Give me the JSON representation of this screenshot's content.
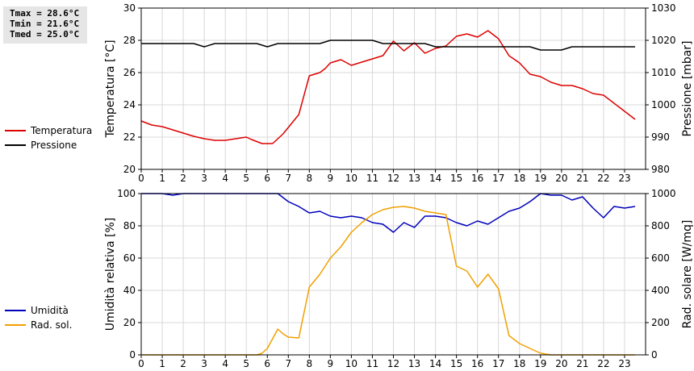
{
  "stats": {
    "tmax": "Tmax = 28.6°C",
    "tmin": "Tmin = 21.6°C",
    "tmed": "Tmed = 25.0°C"
  },
  "legend_top": [
    {
      "label": "Temperatura",
      "color": "#dd0000"
    },
    {
      "label": "Pressione",
      "color": "#000000"
    }
  ],
  "legend_bottom": [
    {
      "label": "Umidità",
      "color": "#0000bb"
    },
    {
      "label": "Rad. sol.",
      "color": "#f0a000"
    }
  ],
  "chart_data": [
    {
      "type": "line",
      "ylabel": "Temperatura [°C]",
      "y2label": "Pressione [mbar]",
      "xlim": [
        0,
        24
      ],
      "xticks": [
        "0",
        "1",
        "2",
        "3",
        "4",
        "5",
        "6",
        "7",
        "8",
        "9",
        "10",
        "11",
        "12",
        "13",
        "14",
        "15",
        "16",
        "17",
        "18",
        "19",
        "20",
        "21",
        "22",
        "23"
      ],
      "ylim": [
        20,
        30
      ],
      "yticks": [
        "20",
        "22",
        "24",
        "26",
        "28",
        "30"
      ],
      "y2lim": [
        980,
        1030
      ],
      "y2ticks": [
        "980",
        "990",
        "1000",
        "1010",
        "1020",
        "1030"
      ],
      "grid": true,
      "series": [
        {
          "name": "Temperatura",
          "axis": "left",
          "color": "#dd0000",
          "x": [
            0,
            0.5,
            1,
            1.5,
            2,
            2.5,
            3,
            3.5,
            4,
            4.5,
            5,
            5.25,
            5.75,
            6.25,
            6.75,
            7.25,
            7.5,
            8,
            8.25,
            8.5,
            8.75,
            9,
            9.25,
            9.5,
            10,
            10.5,
            11,
            11.5,
            12,
            12.5,
            13,
            13.5,
            14,
            14.5,
            15,
            15.5,
            16,
            16.5,
            17,
            17.5,
            18,
            18.5,
            19,
            19.5,
            20,
            20.5,
            21,
            21.5,
            22,
            22.5,
            23,
            23.5
          ],
          "values": [
            23.0,
            22.75,
            22.65,
            22.45,
            22.25,
            22.05,
            21.9,
            21.8,
            21.8,
            21.9,
            22.0,
            21.85,
            21.6,
            21.6,
            22.2,
            23.0,
            23.4,
            25.8,
            25.9,
            26.0,
            26.25,
            26.6,
            26.7,
            26.8,
            26.45,
            26.65,
            26.85,
            27.05,
            27.95,
            27.35,
            27.85,
            27.2,
            27.5,
            27.65,
            28.25,
            28.4,
            28.2,
            28.6,
            28.1,
            27.05,
            26.6,
            25.9,
            25.75,
            25.4,
            25.2,
            25.2,
            25.0,
            24.7,
            24.6,
            24.1,
            23.6,
            23.1
          ]
        },
        {
          "name": "Pressione",
          "axis": "right",
          "color": "#000000",
          "x": [
            0,
            0.5,
            1,
            1.5,
            2,
            2.5,
            3,
            3.5,
            4,
            4.5,
            5,
            5.5,
            6,
            6.5,
            7,
            7.5,
            8,
            8.5,
            9,
            9.5,
            10,
            10.5,
            11,
            11.5,
            12,
            12.5,
            13,
            13.5,
            14,
            14.5,
            15,
            15.5,
            16,
            16.5,
            17,
            17.5,
            18,
            18.5,
            19,
            19.5,
            20,
            20.5,
            21,
            21.5,
            22,
            22.5,
            23,
            23.5
          ],
          "values": [
            1019,
            1019,
            1019,
            1019,
            1019,
            1019,
            1018,
            1019,
            1019,
            1019,
            1019,
            1019,
            1018,
            1019,
            1019,
            1019,
            1019,
            1019,
            1020,
            1020,
            1020,
            1020,
            1020,
            1019,
            1019,
            1019,
            1019,
            1019,
            1018,
            1018,
            1018,
            1018,
            1018,
            1018,
            1018,
            1018,
            1018,
            1018,
            1017,
            1017,
            1017,
            1018,
            1018,
            1018,
            1018,
            1018,
            1018,
            1018
          ]
        }
      ]
    },
    {
      "type": "line",
      "ylabel": "Umidità relativa [%]",
      "y2label": "Rad. solare [W/mq]",
      "xlim": [
        0,
        24
      ],
      "xticks": [
        "0",
        "1",
        "2",
        "3",
        "4",
        "5",
        "6",
        "7",
        "8",
        "9",
        "10",
        "11",
        "12",
        "13",
        "14",
        "15",
        "16",
        "17",
        "18",
        "19",
        "20",
        "21",
        "22",
        "23"
      ],
      "ylim": [
        0,
        100
      ],
      "yticks": [
        "0",
        "20",
        "40",
        "60",
        "80",
        "100"
      ],
      "y2lim": [
        0,
        1000
      ],
      "y2ticks": [
        "0",
        "200",
        "400",
        "600",
        "800",
        "1000"
      ],
      "grid": true,
      "series": [
        {
          "name": "Umidità",
          "axis": "left",
          "color": "#0000bb",
          "x": [
            0,
            1,
            1.5,
            2,
            3,
            4,
            5,
            6,
            6.5,
            7,
            7.5,
            8,
            8.5,
            9,
            9.5,
            10,
            10.5,
            11,
            11.5,
            12,
            12.5,
            13,
            13.5,
            14,
            14.5,
            15,
            15.5,
            16,
            16.5,
            17,
            17.5,
            18,
            18.5,
            19,
            19.5,
            20,
            20.5,
            21,
            21.5,
            22,
            22.5,
            23,
            23.5
          ],
          "values": [
            100,
            100,
            99,
            100,
            100,
            100,
            100,
            100,
            100,
            95,
            92,
            88,
            89,
            86,
            85,
            86,
            85,
            82,
            81,
            76,
            82,
            79,
            86,
            86,
            85,
            82,
            80,
            83,
            81,
            85,
            89,
            91,
            95,
            100,
            99,
            99,
            96,
            98,
            91,
            85,
            92,
            91,
            92
          ]
        },
        {
          "name": "Rad. sol.",
          "axis": "right",
          "color": "#f0a000",
          "x": [
            0,
            1,
            2,
            3,
            4,
            5,
            5.5,
            5.75,
            6,
            6.5,
            6.75,
            7,
            7.5,
            8,
            8.5,
            9,
            9.5,
            10,
            10.5,
            11,
            11.5,
            12,
            12.5,
            13,
            13.5,
            14,
            14.5,
            15,
            15.5,
            16,
            16.5,
            17,
            17.5,
            18,
            18.5,
            19,
            19.5,
            20,
            21,
            22,
            23,
            23.5
          ],
          "values": [
            0,
            0,
            0,
            0,
            0,
            0,
            0,
            10,
            40,
            160,
            130,
            110,
            105,
            420,
            500,
            600,
            670,
            760,
            820,
            870,
            900,
            915,
            920,
            910,
            890,
            880,
            870,
            550,
            520,
            420,
            500,
            410,
            120,
            70,
            40,
            10,
            0,
            0,
            0,
            0,
            0,
            0
          ]
        }
      ]
    }
  ]
}
